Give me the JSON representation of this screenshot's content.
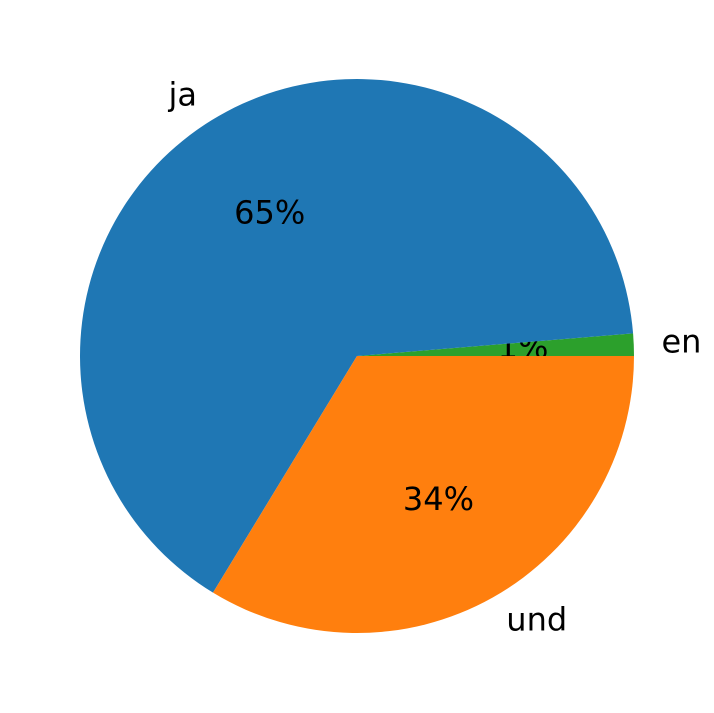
{
  "chart_data": {
    "type": "pie",
    "labels": [
      "en",
      "ja",
      "und"
    ],
    "values": [
      1.3,
      65.0,
      33.7
    ],
    "percent_labels": [
      "1%",
      "65%",
      "34%"
    ],
    "colors": [
      "#2ca02c",
      "#1f77b4",
      "#ff7f0e"
    ],
    "start_angle_deg": 0,
    "direction": "counterclockwise",
    "title": "",
    "legend": "none"
  }
}
